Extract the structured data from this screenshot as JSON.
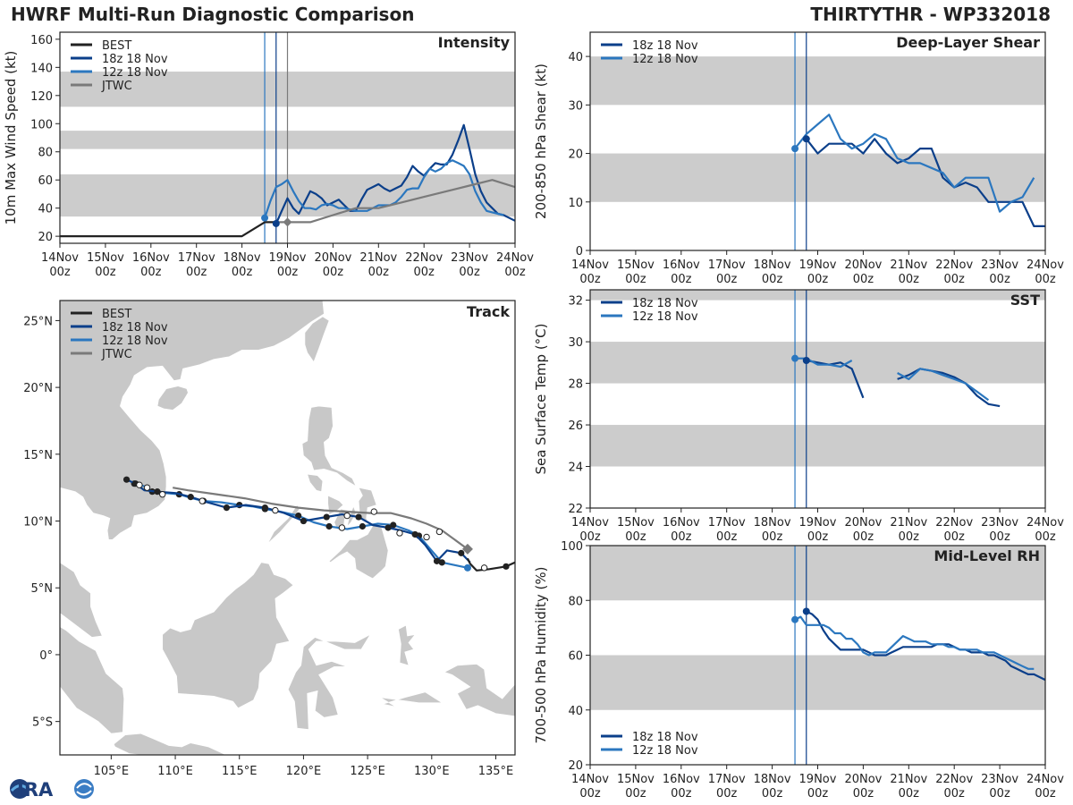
{
  "header": {
    "title_left": "HWRF Multi-Run Diagnostic Comparison",
    "title_right": "THIRTYTHR - WP332018"
  },
  "colors": {
    "best": "#222222",
    "run18": "#0b3f8a",
    "run12": "#2b77bf",
    "jtwc": "#7a7a7a",
    "band": "#cccccc",
    "land": "#c8c8c8"
  },
  "legend": {
    "best": "BEST",
    "run18": "18z 18 Nov",
    "run12": "12z 18 Nov",
    "jtwc": "JTWC"
  },
  "time_axis": {
    "ticks_top": [
      "14Nov",
      "15Nov",
      "16Nov",
      "17Nov",
      "18Nov",
      "19Nov",
      "20Nov",
      "21Nov",
      "22Nov",
      "23Nov",
      "24Nov"
    ],
    "ticks_bottom": [
      "00z",
      "00z",
      "00z",
      "00z",
      "00z",
      "00z",
      "00z",
      "00z",
      "00z",
      "00z",
      "00z"
    ],
    "init_lines_hours": [
      108,
      114,
      120
    ]
  },
  "logo": {
    "text": "CIRA"
  },
  "chart_data": [
    {
      "id": "intensity",
      "type": "line",
      "title": "Intensity",
      "ylabel": "10m Max Wind Speed (kt)",
      "ylim": [
        15,
        165
      ],
      "yticks": [
        20,
        40,
        60,
        80,
        100,
        120,
        140,
        160
      ],
      "bands": [
        [
          34,
          64
        ],
        [
          82,
          95
        ],
        [
          112,
          137
        ]
      ],
      "x_unit": "hours since 14Nov 00z",
      "series": [
        {
          "name": "BEST",
          "x": [
            0,
            96,
            108,
            114
          ],
          "y": [
            20,
            20,
            30,
            30
          ]
        },
        {
          "name": "18z 18 Nov",
          "x": [
            114,
            117,
            120,
            123,
            126,
            129,
            132,
            135,
            138,
            141,
            144,
            147,
            150,
            153,
            156,
            159,
            162,
            165,
            168,
            171,
            174,
            177,
            180,
            183,
            186,
            189,
            192,
            195,
            198,
            201,
            204,
            207,
            210,
            213,
            216,
            219,
            222,
            225,
            228,
            231,
            234,
            237,
            240
          ],
          "y": [
            29,
            38,
            47,
            40,
            36,
            44,
            52,
            50,
            47,
            42,
            44,
            46,
            42,
            38,
            38,
            46,
            53,
            55,
            57,
            54,
            52,
            54,
            56,
            62,
            70,
            66,
            63,
            68,
            72,
            71,
            71,
            78,
            88,
            99,
            82,
            64,
            52,
            44,
            40,
            36,
            35,
            33,
            31
          ]
        },
        {
          "name": "12z 18 Nov",
          "x": [
            108,
            111,
            114,
            117,
            120,
            123,
            126,
            129,
            132,
            135,
            138,
            141,
            144,
            147,
            150,
            153,
            156,
            159,
            162,
            165,
            168,
            171,
            174,
            177,
            180,
            183,
            186,
            189,
            192,
            195,
            198,
            201,
            204,
            207,
            210,
            213,
            216,
            219,
            222,
            225,
            228,
            231,
            234
          ],
          "y": [
            33,
            45,
            55,
            57,
            60,
            52,
            45,
            40,
            40,
            39,
            42,
            43,
            42,
            40,
            40,
            39,
            38,
            38,
            38,
            40,
            42,
            42,
            42,
            44,
            48,
            53,
            54,
            54,
            62,
            68,
            66,
            68,
            72,
            74,
            72,
            70,
            64,
            52,
            44,
            38,
            37,
            36,
            35
          ]
        },
        {
          "name": "JTWC",
          "x": [
            114,
            120,
            132,
            144,
            156,
            168,
            180,
            192,
            204,
            216,
            228,
            240
          ],
          "y": [
            30,
            30,
            30,
            35,
            40,
            40,
            44,
            48,
            52,
            56,
            60,
            55
          ]
        }
      ],
      "markers": [
        {
          "series": "18z 18 Nov",
          "x": 114,
          "y": 29
        },
        {
          "series": "12z 18 Nov",
          "x": 108,
          "y": 33
        },
        {
          "series": "JTWC",
          "x": 120,
          "y": 30,
          "shape": "diamond"
        }
      ]
    },
    {
      "id": "shear",
      "type": "line",
      "title": "Deep-Layer Shear",
      "ylabel": "200-850 hPa Shear (kt)",
      "ylim": [
        0,
        45
      ],
      "yticks": [
        0,
        10,
        20,
        30,
        40
      ],
      "bands": [
        [
          10,
          20
        ],
        [
          30,
          40
        ]
      ],
      "x_unit": "hours since 14Nov 00z",
      "series": [
        {
          "name": "18z 18 Nov",
          "x": [
            114,
            120,
            126,
            132,
            138,
            144,
            150,
            156,
            162,
            168,
            174,
            180,
            186,
            192,
            198,
            204,
            210,
            216,
            222,
            228,
            234,
            240
          ],
          "y": [
            23,
            20,
            22,
            22,
            22,
            20,
            23,
            20,
            18,
            19,
            21,
            21,
            15,
            13,
            14,
            13,
            10,
            10,
            10,
            10,
            5,
            5
          ]
        },
        {
          "name": "12z 18 Nov",
          "x": [
            108,
            114,
            120,
            126,
            132,
            138,
            144,
            150,
            156,
            162,
            168,
            174,
            180,
            186,
            192,
            198,
            204,
            210,
            216,
            222,
            228,
            234
          ],
          "y": [
            21,
            24,
            26,
            28,
            23,
            21,
            22,
            24,
            23,
            19,
            18,
            18,
            17,
            16,
            13,
            15,
            15,
            15,
            8,
            10,
            11,
            15
          ]
        }
      ],
      "markers": [
        {
          "series": "18z 18 Nov",
          "x": 114,
          "y": 23
        },
        {
          "series": "12z 18 Nov",
          "x": 108,
          "y": 21
        }
      ]
    },
    {
      "id": "sst",
      "type": "line",
      "title": "SST",
      "ylabel": "Sea Surface Temp (°C)",
      "ylim": [
        22,
        32.5
      ],
      "yticks": [
        22,
        24,
        26,
        28,
        30,
        32
      ],
      "bands": [
        [
          24,
          26
        ],
        [
          28,
          30
        ],
        [
          32,
          34
        ]
      ],
      "x_unit": "hours since 14Nov 00z",
      "series": [
        {
          "name": "18z 18 Nov",
          "segments": [
            {
              "x": [
                114,
                120,
                126,
                132,
                138,
                144
              ],
              "y": [
                29.1,
                29.0,
                28.9,
                29.0,
                28.7,
                27.3
              ]
            },
            {
              "x": [
                162,
                168,
                174,
                180,
                186,
                192,
                198,
                204,
                210,
                216
              ],
              "y": [
                28.2,
                28.4,
                28.7,
                28.6,
                28.5,
                28.3,
                28.0,
                27.4,
                27.0,
                26.9
              ]
            }
          ]
        },
        {
          "name": "12z 18 Nov",
          "segments": [
            {
              "x": [
                108,
                114,
                120,
                126,
                132,
                138
              ],
              "y": [
                29.2,
                29.2,
                28.9,
                28.9,
                28.8,
                29.1
              ]
            },
            {
              "x": [
                162,
                168,
                174,
                180,
                186,
                192,
                198,
                204,
                210
              ],
              "y": [
                28.5,
                28.2,
                28.7,
                28.6,
                28.4,
                28.2,
                28.0,
                27.6,
                27.2
              ]
            }
          ]
        }
      ],
      "markers": [
        {
          "series": "18z 18 Nov",
          "x": 114,
          "y": 29.1
        },
        {
          "series": "12z 18 Nov",
          "x": 108,
          "y": 29.2
        }
      ]
    },
    {
      "id": "rh",
      "type": "line",
      "title": "Mid-Level RH",
      "ylabel": "700-500 hPa Humidity (%)",
      "ylim": [
        20,
        100
      ],
      "yticks": [
        20,
        40,
        60,
        80,
        100
      ],
      "bands": [
        [
          40,
          60
        ],
        [
          80,
          100
        ]
      ],
      "x_unit": "hours since 14Nov 00z",
      "series": [
        {
          "name": "18z 18 Nov",
          "x": [
            114,
            117,
            120,
            123,
            126,
            129,
            132,
            135,
            138,
            141,
            144,
            147,
            150,
            153,
            156,
            159,
            162,
            165,
            168,
            171,
            174,
            177,
            180,
            183,
            186,
            189,
            192,
            195,
            198,
            201,
            204,
            207,
            210,
            213,
            216,
            219,
            222,
            225,
            228,
            231,
            234,
            237,
            240
          ],
          "y": [
            76,
            75,
            73,
            69,
            66,
            64,
            62,
            62,
            62,
            62,
            62,
            61,
            60,
            60,
            60,
            61,
            62,
            63,
            63,
            63,
            63,
            63,
            63,
            64,
            64,
            64,
            63,
            62,
            62,
            61,
            61,
            61,
            60,
            60,
            59,
            58,
            56,
            55,
            54,
            53,
            53,
            52,
            51
          ]
        },
        {
          "name": "12z 18 Nov",
          "x": [
            108,
            111,
            114,
            117,
            120,
            123,
            126,
            129,
            132,
            135,
            138,
            141,
            144,
            147,
            150,
            153,
            156,
            159,
            162,
            165,
            168,
            171,
            174,
            177,
            180,
            183,
            186,
            189,
            192,
            195,
            198,
            201,
            204,
            207,
            210,
            213,
            216,
            219,
            222,
            225,
            228,
            231,
            234
          ],
          "y": [
            73,
            74,
            71,
            71,
            71,
            71,
            70,
            68,
            68,
            66,
            66,
            64,
            61,
            60,
            61,
            61,
            61,
            63,
            65,
            67,
            66,
            65,
            65,
            65,
            64,
            64,
            64,
            63,
            63,
            62,
            62,
            62,
            62,
            61,
            61,
            61,
            60,
            59,
            58,
            57,
            56,
            55,
            55
          ]
        }
      ],
      "markers": [
        {
          "series": "18z 18 Nov",
          "x": 114,
          "y": 76
        },
        {
          "series": "12z 18 Nov",
          "x": 108,
          "y": 73
        }
      ]
    },
    {
      "id": "track",
      "type": "scatter",
      "title": "Track",
      "lon_range": [
        101,
        136.5
      ],
      "lat_range": [
        -7.5,
        26.5
      ],
      "xticks": [
        105,
        110,
        115,
        120,
        125,
        130,
        135
      ],
      "xtick_labels": [
        "105°E",
        "110°E",
        "115°E",
        "120°E",
        "125°E",
        "130°E",
        "135°E"
      ],
      "yticks": [
        -5,
        0,
        5,
        10,
        15,
        20,
        25
      ],
      "ytick_labels": [
        "5°S",
        "0°",
        "5°N",
        "10°N",
        "15°N",
        "20°N",
        "25°N"
      ],
      "series": [
        {
          "name": "BEST",
          "lon": [
            136.5,
            135.8,
            134.5,
            133.5,
            133.0,
            132.8
          ],
          "lat": [
            6.9,
            6.6,
            6.4,
            6.3,
            6.8,
            7.2
          ],
          "dots": [
            1
          ]
        },
        {
          "name": "18z 18 Nov",
          "lon": [
            133.0,
            132.3,
            131.2,
            130.4,
            129.5,
            128.7,
            127.6,
            126.6,
            125.4,
            124.3,
            123.0,
            121.8,
            120.0,
            118.5,
            117.0,
            115.5,
            114.0,
            112.5,
            111.2,
            110.0,
            108.6,
            107.6,
            106.9,
            106.2
          ],
          "lat": [
            6.9,
            7.6,
            7.8,
            7.0,
            8.2,
            9.0,
            9.3,
            9.5,
            9.7,
            10.3,
            10.5,
            10.3,
            10.0,
            10.6,
            11.0,
            11.2,
            11.0,
            11.4,
            11.8,
            12.1,
            12.2,
            12.3,
            12.8,
            13.1
          ],
          "dots": [
            1,
            3,
            5,
            7,
            9,
            11,
            12,
            14,
            16,
            18,
            20,
            22,
            23
          ]
        },
        {
          "name": "12z 18 Nov",
          "lon": [
            132.8,
            131.8,
            130.8,
            129.8,
            129.0,
            128.2,
            127.0,
            125.8,
            124.6,
            123.4,
            122.0,
            120.8,
            119.6,
            118.2,
            117.0,
            116.0,
            115.0,
            113.6,
            112.2,
            111.3,
            110.3,
            109.2,
            108.2,
            107.6,
            106.8
          ],
          "lat": [
            6.5,
            6.7,
            6.9,
            8.0,
            8.9,
            9.3,
            9.7,
            9.8,
            9.6,
            9.4,
            9.6,
            9.9,
            10.4,
            10.7,
            10.9,
            11.1,
            11.2,
            11.4,
            11.5,
            11.7,
            12.0,
            12.1,
            12.2,
            12.6,
            12.8
          ],
          "dots": [
            2,
            4,
            6,
            8,
            10,
            12,
            14,
            16,
            18,
            20,
            22,
            24
          ]
        },
        {
          "name": "JTWC",
          "lon": [
            132.8,
            131.8,
            130.8,
            129.6,
            128.4,
            126.8,
            125.2,
            123.5,
            121.6,
            119.6,
            117.5,
            115.4,
            113.2,
            111.0,
            109.8
          ],
          "lat": [
            7.9,
            8.6,
            9.3,
            9.8,
            10.2,
            10.6,
            10.6,
            10.7,
            10.8,
            11.0,
            11.3,
            11.7,
            12.0,
            12.3,
            12.5
          ],
          "dots": [
            0
          ]
        }
      ],
      "open_markers": [
        {
          "lon": 134.1,
          "lat": 6.5
        },
        {
          "lon": 130.6,
          "lat": 9.2
        },
        {
          "lon": 129.6,
          "lat": 8.8
        },
        {
          "lon": 127.5,
          "lat": 9.1
        },
        {
          "lon": 125.5,
          "lat": 10.7
        },
        {
          "lon": 123.4,
          "lat": 10.4
        },
        {
          "lon": 123.0,
          "lat": 9.5
        },
        {
          "lon": 117.8,
          "lat": 10.8
        },
        {
          "lon": 112.1,
          "lat": 11.5
        },
        {
          "lon": 109.0,
          "lat": 12.0
        },
        {
          "lon": 107.8,
          "lat": 12.5
        },
        {
          "lon": 107.2,
          "lat": 12.7
        }
      ]
    }
  ]
}
